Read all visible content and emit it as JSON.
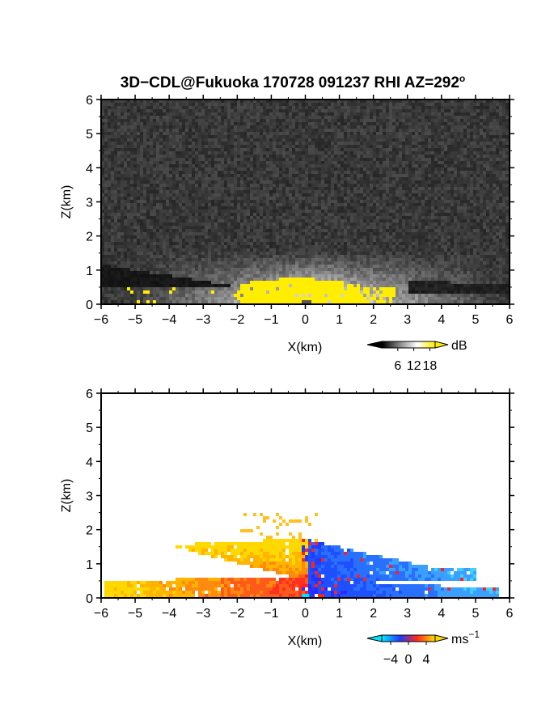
{
  "title": "3D−CDL@Fukuoka 170728 091237 RHI AZ=292",
  "title_superscript": "o",
  "chart_data": [
    {
      "type": "heatmap",
      "name": "reflectivity-panel",
      "x_range": [
        -6,
        6
      ],
      "z_range": [
        0,
        6
      ],
      "xlabel": "X(km)",
      "ylabel": "Z(km)",
      "x_ticks": [
        "−6",
        "−5",
        "−4",
        "−3",
        "−2",
        "−1",
        "0",
        "1",
        "2",
        "3",
        "4",
        "5",
        "6"
      ],
      "y_ticks": [
        "0",
        "1",
        "2",
        "3",
        "4",
        "5",
        "6"
      ],
      "colorbar": {
        "unit": "dB",
        "ticks": [
          "6",
          "12",
          "18"
        ],
        "tick_values": [
          6,
          12,
          18
        ],
        "range": [
          0,
          20
        ],
        "colors": [
          "#000000",
          "#ffffff",
          "#ffee00"
        ]
      },
      "features": {
        "noise_background": "dark gray speckle",
        "clear_region_left": {
          "x": [
            -6,
            -2
          ],
          "z_bottom": 0.55,
          "z_top_at_left": 1.2
        },
        "strong_echo_yellow": {
          "x": [
            -2,
            1.5
          ],
          "z": [
            0,
            0.9
          ],
          "color": "#ffee00"
        },
        "brightening_zone": {
          "x": [
            -4,
            5
          ],
          "z": [
            0,
            1.6
          ]
        }
      }
    },
    {
      "type": "heatmap",
      "name": "doppler-velocity-panel",
      "x_range": [
        -6,
        6
      ],
      "z_range": [
        0,
        6
      ],
      "xlabel": "X(km)",
      "ylabel": "Z(km)",
      "x_ticks": [
        "−6",
        "−5",
        "−4",
        "−3",
        "−2",
        "−1",
        "0",
        "1",
        "2",
        "3",
        "4",
        "5",
        "6"
      ],
      "y_ticks": [
        "0",
        "1",
        "2",
        "3",
        "4",
        "5",
        "6"
      ],
      "colorbar": {
        "unit": "ms",
        "unit_superscript": "−1",
        "ticks": [
          "−4",
          "0",
          "4"
        ],
        "tick_values": [
          -4,
          0,
          4
        ],
        "range": [
          -6,
          6
        ],
        "colors": [
          "#00e5ff",
          "#1e3cff",
          "#ff2a1a",
          "#ffd800"
        ]
      },
      "features": {
        "upper_layer": {
          "x": [
            -4,
            5
          ],
          "z": [
            0.6,
            1.8
          ]
        },
        "lower_layer": {
          "x": [
            -6,
            5.5
          ],
          "z": [
            0,
            0.6
          ]
        },
        "approaching_side": "x < 0 (warm colors)",
        "receding_side": "x > 0 (blue colors)"
      }
    }
  ]
}
